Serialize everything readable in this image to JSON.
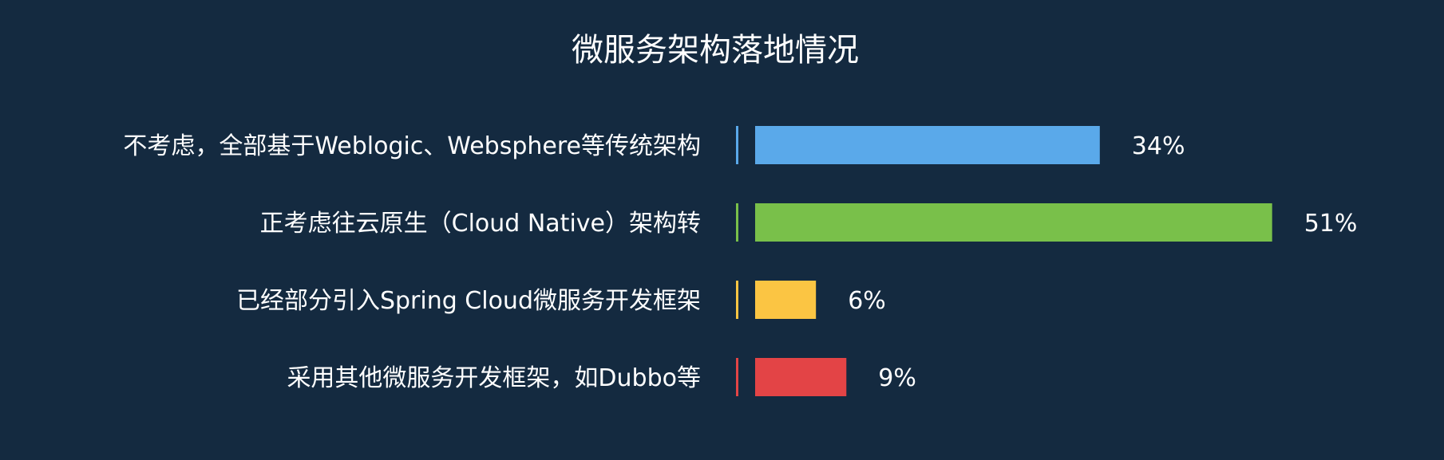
{
  "chart_data": {
    "type": "bar",
    "orientation": "horizontal",
    "title": "微服务架构落地情况",
    "categories": [
      "不考虑，全部基于Weblogic、Websphere等传统架构",
      "正考虑往云原生（Cloud Native）架构转",
      "已经部分引入Spring Cloud微服务开发框架",
      "采用其他微服务开发框架，如Dubbo等"
    ],
    "values": [
      34,
      51,
      6,
      9
    ],
    "value_labels": [
      "34%",
      "51%",
      "6%",
      "9%"
    ],
    "unit": "%",
    "colors": [
      "#5aa9ea",
      "#79c04a",
      "#fbc543",
      "#e34446"
    ],
    "background": "#142a40",
    "grid": false,
    "legend": "none"
  }
}
